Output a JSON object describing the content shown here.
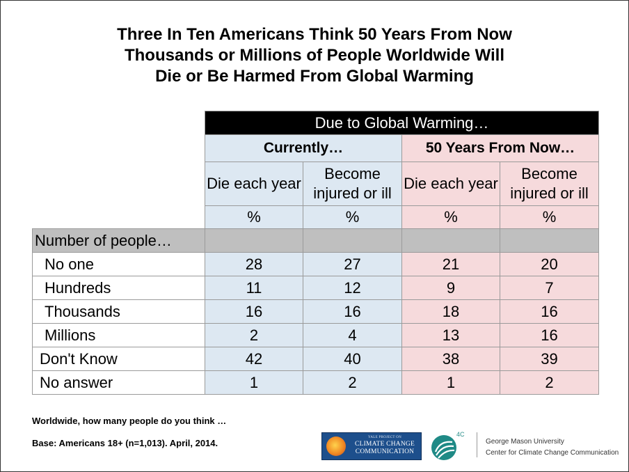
{
  "title": {
    "line1": "Three In Ten Americans Think 50 Years From Now",
    "line2": "Thousands or Millions of People Worldwide Will",
    "line3": "Die or Be Harmed From Global Warming"
  },
  "chart_data": {
    "type": "table",
    "header_band": "Due to Global Warming…",
    "groups": [
      "Currently…",
      "50 Years From Now…"
    ],
    "columns": [
      "Die each year",
      "Become injured or ill",
      "Die each year",
      "Become injured or ill"
    ],
    "unit_row": [
      "%",
      "%",
      "%",
      "%"
    ],
    "section_label": "Number of people…",
    "rows": [
      {
        "label": "No one",
        "values": [
          28,
          27,
          21,
          20
        ]
      },
      {
        "label": "Hundreds",
        "values": [
          11,
          12,
          9,
          7
        ]
      },
      {
        "label": "Thousands",
        "values": [
          16,
          16,
          18,
          16
        ]
      },
      {
        "label": "Millions",
        "values": [
          2,
          4,
          13,
          16
        ]
      },
      {
        "label": "Don't Know",
        "values": [
          42,
          40,
          38,
          39
        ]
      },
      {
        "label": "No answer",
        "values": [
          1,
          2,
          1,
          2
        ]
      }
    ],
    "colors": {
      "currently": "#dde8f2",
      "future": "#f6dadc",
      "section": "#bfbfbf",
      "band": "#000000"
    }
  },
  "notes": {
    "question": "Worldwide, how many people do you think …",
    "base": "Base: Americans 18+ (n=1,013). April, 2014."
  },
  "logos": {
    "ypccc": {
      "line1": "YALE PROJECT ON",
      "line2": "CLIMATE CHANGE",
      "line3": "COMMUNICATION"
    },
    "fourc": {
      "label": "4C",
      "icon": "swirl-logo-icon"
    },
    "gmu": {
      "line1": "George Mason University",
      "line2": "Center for Climate Change Communication"
    }
  }
}
